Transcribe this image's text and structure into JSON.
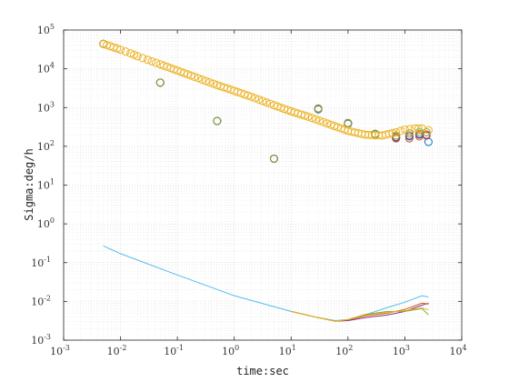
{
  "chart_data": {
    "type": "scatter",
    "xlabel": "time:sec",
    "ylabel": "Sigma:deg/h",
    "x_scale": "log",
    "y_scale": "log",
    "xlim": [
      0.001,
      10000
    ],
    "ylim": [
      0.001,
      100000
    ],
    "x_ticks": [
      0.001,
      0.01,
      0.1,
      1,
      10,
      100,
      1000,
      10000
    ],
    "y_ticks": [
      0.001,
      0.01,
      0.1,
      1,
      10,
      100,
      1000,
      10000,
      100000
    ],
    "grid": "major and minor, dotted",
    "colors": {
      "blue": "#0072bd",
      "orange": "#d95319",
      "yellow": "#edb120",
      "purple": "#7e2f8e",
      "green": "#77ac30",
      "cyan": "#4dbeee"
    },
    "series": [
      {
        "marker": "circle",
        "color": "#0072bd",
        "x": [
          0.005,
          0.05,
          0.5,
          5,
          30,
          100,
          300,
          700,
          1200,
          1800,
          2600
        ],
        "y": [
          44000,
          4400,
          450,
          48,
          900,
          380,
          210,
          165,
          180,
          210,
          130
        ]
      },
      {
        "marker": "circle",
        "color": "#d95319",
        "x": [
          0.005,
          0.05,
          0.5,
          5,
          30,
          100,
          300,
          700,
          1200,
          1800,
          2400
        ],
        "y": [
          44000,
          4400,
          450,
          48,
          950,
          400,
          200,
          160,
          160,
          180,
          200
        ]
      },
      {
        "marker": "circle",
        "color": "#7e2f8e",
        "x": [
          0.005,
          0.05,
          0.5,
          5,
          30,
          100,
          300,
          700,
          1200,
          1800,
          2400
        ],
        "y": [
          44000,
          4400,
          450,
          48,
          920,
          390,
          205,
          175,
          190,
          200,
          190
        ]
      },
      {
        "marker": "circle",
        "color": "#77ac30",
        "x": [
          0.005,
          0.05,
          0.5,
          5,
          30,
          100,
          300,
          700,
          1200,
          1800,
          2400
        ],
        "y": [
          44000,
          4400,
          450,
          48,
          930,
          390,
          205,
          190,
          215,
          235,
          230
        ]
      },
      {
        "marker": "circle",
        "color": "#edb120",
        "x": [
          0.005,
          0.01,
          0.015,
          0.02,
          0.03,
          0.05,
          0.1,
          0.2,
          0.5,
          1,
          2,
          5,
          10,
          20,
          50,
          100,
          200,
          400,
          700,
          1000,
          1500,
          2000,
          2600
        ],
        "y": [
          44000,
          31000,
          25000,
          21000,
          17000,
          13000,
          9000,
          6200,
          3800,
          2700,
          1900,
          1150,
          800,
          580,
          360,
          250,
          200,
          190,
          230,
          270,
          290,
          290,
          260
        ]
      },
      {
        "line": true,
        "color": "#4dbeee",
        "x": [
          0.005,
          0.01,
          0.1,
          1,
          10,
          30,
          60,
          100,
          200,
          500,
          1000,
          2000,
          2600
        ],
        "y": [
          0.27,
          0.17,
          0.048,
          0.014,
          0.0055,
          0.0038,
          0.0032,
          0.0034,
          0.0045,
          0.007,
          0.0095,
          0.014,
          0.013
        ]
      },
      {
        "line": true,
        "color": "#7e2f8e",
        "x": [
          10,
          30,
          60,
          100,
          200,
          500,
          1000,
          2000,
          2600
        ],
        "y": [
          0.0055,
          0.0038,
          0.0031,
          0.0032,
          0.0038,
          0.0045,
          0.0055,
          0.008,
          0.009
        ]
      },
      {
        "line": true,
        "color": "#d95319",
        "x": [
          10,
          30,
          60,
          100,
          200,
          500,
          1000,
          2000,
          2600
        ],
        "y": [
          0.0055,
          0.0038,
          0.0031,
          0.0033,
          0.0042,
          0.005,
          0.0062,
          0.009,
          0.0085
        ]
      },
      {
        "line": true,
        "color": "#77ac30",
        "x": [
          10,
          30,
          60,
          100,
          200,
          500,
          1000,
          2000,
          2600
        ],
        "y": [
          0.0055,
          0.0038,
          0.0031,
          0.0034,
          0.0046,
          0.0055,
          0.0055,
          0.0065,
          0.0045
        ]
      },
      {
        "line": true,
        "color": "#edb120",
        "x": [
          10,
          30,
          60,
          100,
          200,
          500,
          1000,
          2000,
          2600
        ],
        "y": [
          0.0055,
          0.0038,
          0.0031,
          0.0034,
          0.0044,
          0.0052,
          0.0058,
          0.0068,
          0.006
        ]
      }
    ]
  }
}
